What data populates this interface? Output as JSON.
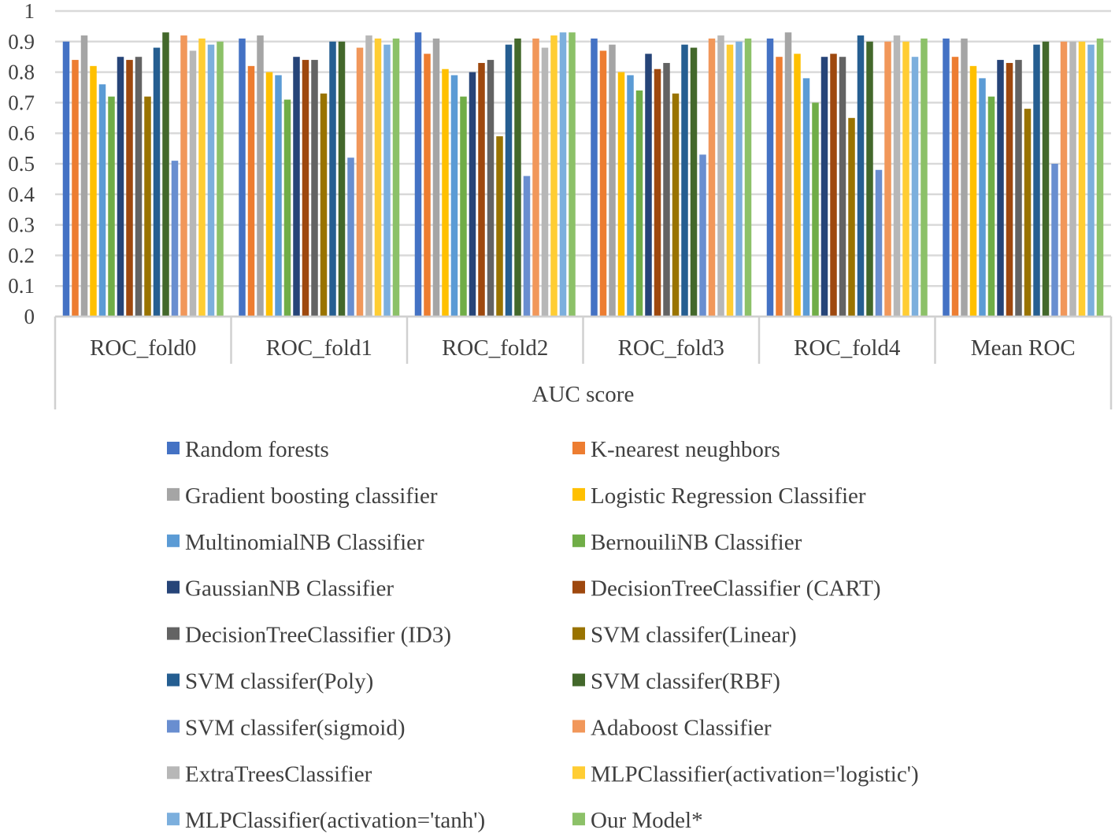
{
  "chart_data": {
    "type": "bar",
    "title": "",
    "xlabel": "AUC score",
    "ylabel": "",
    "ylim": [
      0,
      1
    ],
    "yticks": [
      "0",
      "0.1",
      "0.2",
      "0.3",
      "0.4",
      "0.5",
      "0.6",
      "0.7",
      "0.8",
      "0.9",
      "1"
    ],
    "grid": true,
    "legend_position": "bottom",
    "categories": [
      "ROC_fold0",
      "ROC_fold1",
      "ROC_fold2",
      "ROC_fold3",
      "ROC_fold4",
      "Mean ROC"
    ],
    "series": [
      {
        "name": "Random forests",
        "color": "#4472C4",
        "values": [
          0.9,
          0.91,
          0.93,
          0.91,
          0.91,
          0.91
        ]
      },
      {
        "name": "K-nearest neughbors",
        "color": "#ED7D31",
        "values": [
          0.84,
          0.82,
          0.86,
          0.87,
          0.85,
          0.85
        ]
      },
      {
        "name": "Gradient boosting classifier",
        "color": "#A5A5A5",
        "values": [
          0.92,
          0.92,
          0.91,
          0.89,
          0.93,
          0.91
        ]
      },
      {
        "name": "Logistic Regression Classifier",
        "color": "#FFC000",
        "values": [
          0.82,
          0.8,
          0.81,
          0.8,
          0.86,
          0.82
        ]
      },
      {
        "name": "MultinomialNB Classifier",
        "color": "#5B9BD5",
        "values": [
          0.76,
          0.79,
          0.79,
          0.79,
          0.78,
          0.78
        ]
      },
      {
        "name": "BernouiliNB Classifier",
        "color": "#70AD47",
        "values": [
          0.72,
          0.71,
          0.72,
          0.74,
          0.7,
          0.72
        ]
      },
      {
        "name": "GaussianNB Classifier",
        "color": "#264478",
        "values": [
          0.85,
          0.85,
          0.8,
          0.86,
          0.85,
          0.84
        ]
      },
      {
        "name": "DecisionTreeClassifier (CART)",
        "color": "#9E480E",
        "values": [
          0.84,
          0.84,
          0.83,
          0.81,
          0.86,
          0.83
        ]
      },
      {
        "name": "DecisionTreeClassifier (ID3)",
        "color": "#636363",
        "values": [
          0.85,
          0.84,
          0.84,
          0.83,
          0.85,
          0.84
        ]
      },
      {
        "name": "SVM classifer(Linear)",
        "color": "#997300",
        "values": [
          0.72,
          0.73,
          0.59,
          0.73,
          0.65,
          0.68
        ]
      },
      {
        "name": "SVM classifer(Poly)",
        "color": "#255E91",
        "values": [
          0.88,
          0.9,
          0.89,
          0.89,
          0.92,
          0.89
        ]
      },
      {
        "name": "SVM classifer(RBF)",
        "color": "#43682B",
        "values": [
          0.93,
          0.9,
          0.91,
          0.88,
          0.9,
          0.9
        ]
      },
      {
        "name": "SVM classifer(sigmoid)",
        "color": "#698ED0",
        "values": [
          0.51,
          0.52,
          0.46,
          0.53,
          0.48,
          0.5
        ]
      },
      {
        "name": "Adaboost Classifier",
        "color": "#F1975A",
        "values": [
          0.92,
          0.88,
          0.91,
          0.91,
          0.9,
          0.9
        ]
      },
      {
        "name": "ExtraTreesClassifier",
        "color": "#B7B7B7",
        "values": [
          0.87,
          0.92,
          0.88,
          0.92,
          0.92,
          0.9
        ]
      },
      {
        "name": "MLPClassifier(activation='logistic')",
        "color": "#FFCD33",
        "values": [
          0.91,
          0.91,
          0.92,
          0.89,
          0.9,
          0.9
        ]
      },
      {
        "name": "MLPClassifier(activation='tanh')",
        "color": "#7CAFDD",
        "values": [
          0.89,
          0.89,
          0.93,
          0.9,
          0.85,
          0.89
        ]
      },
      {
        "name": "Our Model*",
        "color": "#8CC168",
        "values": [
          0.9,
          0.91,
          0.93,
          0.91,
          0.91,
          0.91
        ]
      }
    ]
  }
}
